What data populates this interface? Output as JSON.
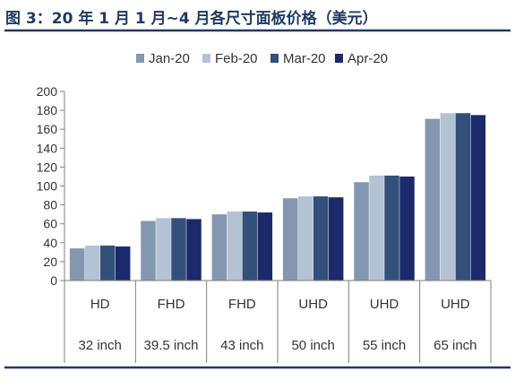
{
  "figure_title": "图 3：20 年 1 月 1 月~4 月各尺寸面板价格（美元）",
  "colors": {
    "title": "#1f3a5f",
    "rule": "#1f3a5f",
    "axis": "#7f7f7f",
    "text": "#333333"
  },
  "chart_data": {
    "type": "bar",
    "title": "",
    "xlabel": "",
    "ylabel": "",
    "ylim": [
      0,
      200
    ],
    "yticks": [
      0,
      20,
      40,
      60,
      80,
      100,
      120,
      140,
      160,
      180,
      200
    ],
    "legend_position": "top",
    "categories": [
      "HD",
      "FHD",
      "FHD",
      "UHD",
      "UHD",
      "UHD"
    ],
    "sizes": [
      "32 inch",
      "39.5 inch",
      "43 inch",
      "50 inch",
      "55 inch",
      "65 inch"
    ],
    "series": [
      {
        "name": "Jan-20",
        "color": "#8497b0",
        "values": [
          34,
          63,
          70,
          87,
          104,
          171
        ]
      },
      {
        "name": "Feb-20",
        "color": "#b4c2d6",
        "values": [
          37,
          66,
          73,
          89,
          111,
          177
        ]
      },
      {
        "name": "Mar-20",
        "color": "#33507a",
        "values": [
          37,
          66,
          73,
          89,
          111,
          177
        ]
      },
      {
        "name": "Apr-20",
        "color": "#1c2a6b",
        "values": [
          36,
          65,
          72,
          88,
          110,
          175
        ]
      }
    ]
  }
}
